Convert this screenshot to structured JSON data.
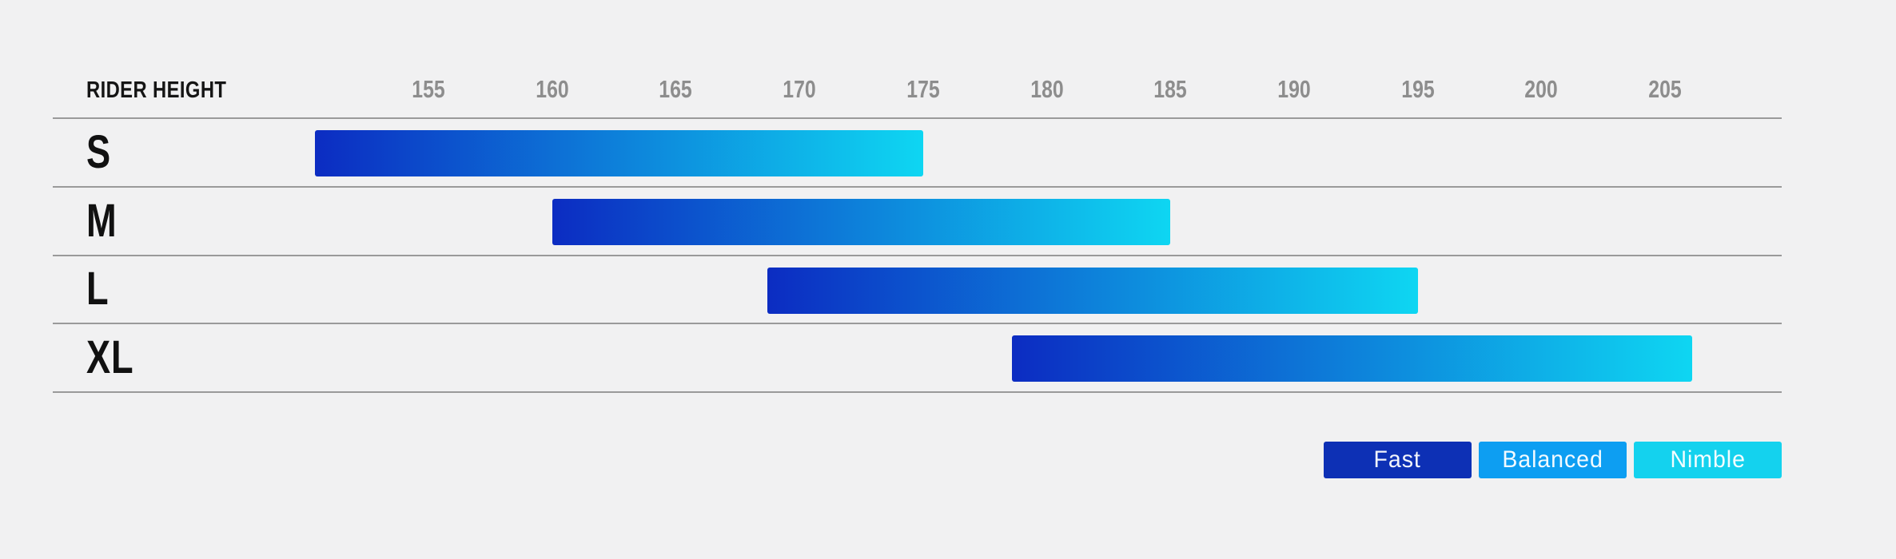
{
  "header": {
    "axis_label": "RIDER HEIGHT"
  },
  "chart_data": {
    "type": "bar",
    "variant": "horizontal-range",
    "title": "",
    "axis_label": "RIDER HEIGHT",
    "x_unit": "cm",
    "x_ticks": [
      155,
      160,
      165,
      170,
      175,
      180,
      185,
      190,
      195,
      200,
      205
    ],
    "x_range_visible": [
      148.5,
      209.5
    ],
    "categories": [
      "S",
      "M",
      "L",
      "XL"
    ],
    "series": [
      {
        "name": "S",
        "range": [
          150.4,
          175.0
        ]
      },
      {
        "name": "M",
        "range": [
          160.0,
          185.0
        ]
      },
      {
        "name": "L",
        "range": [
          168.7,
          195.0
        ]
      },
      {
        "name": "XL",
        "range": [
          178.6,
          206.1
        ]
      }
    ],
    "bar_gradient": [
      "#0c2cc2",
      "#0ed6f2"
    ],
    "legend": [
      {
        "label": "Fast",
        "color": "#0d30b5"
      },
      {
        "label": "Balanced",
        "color": "#0d9ef2"
      },
      {
        "label": "Nimble",
        "color": "#14d2ee"
      }
    ],
    "legend_position": "bottom-right",
    "grid": "row-separator-lines",
    "colors": {
      "background": "#f1f1f2",
      "separator": "#9a9a9a",
      "tick_label": "#8d8d8d",
      "row_label": "#111111",
      "legend_text": "#ffffff"
    }
  }
}
